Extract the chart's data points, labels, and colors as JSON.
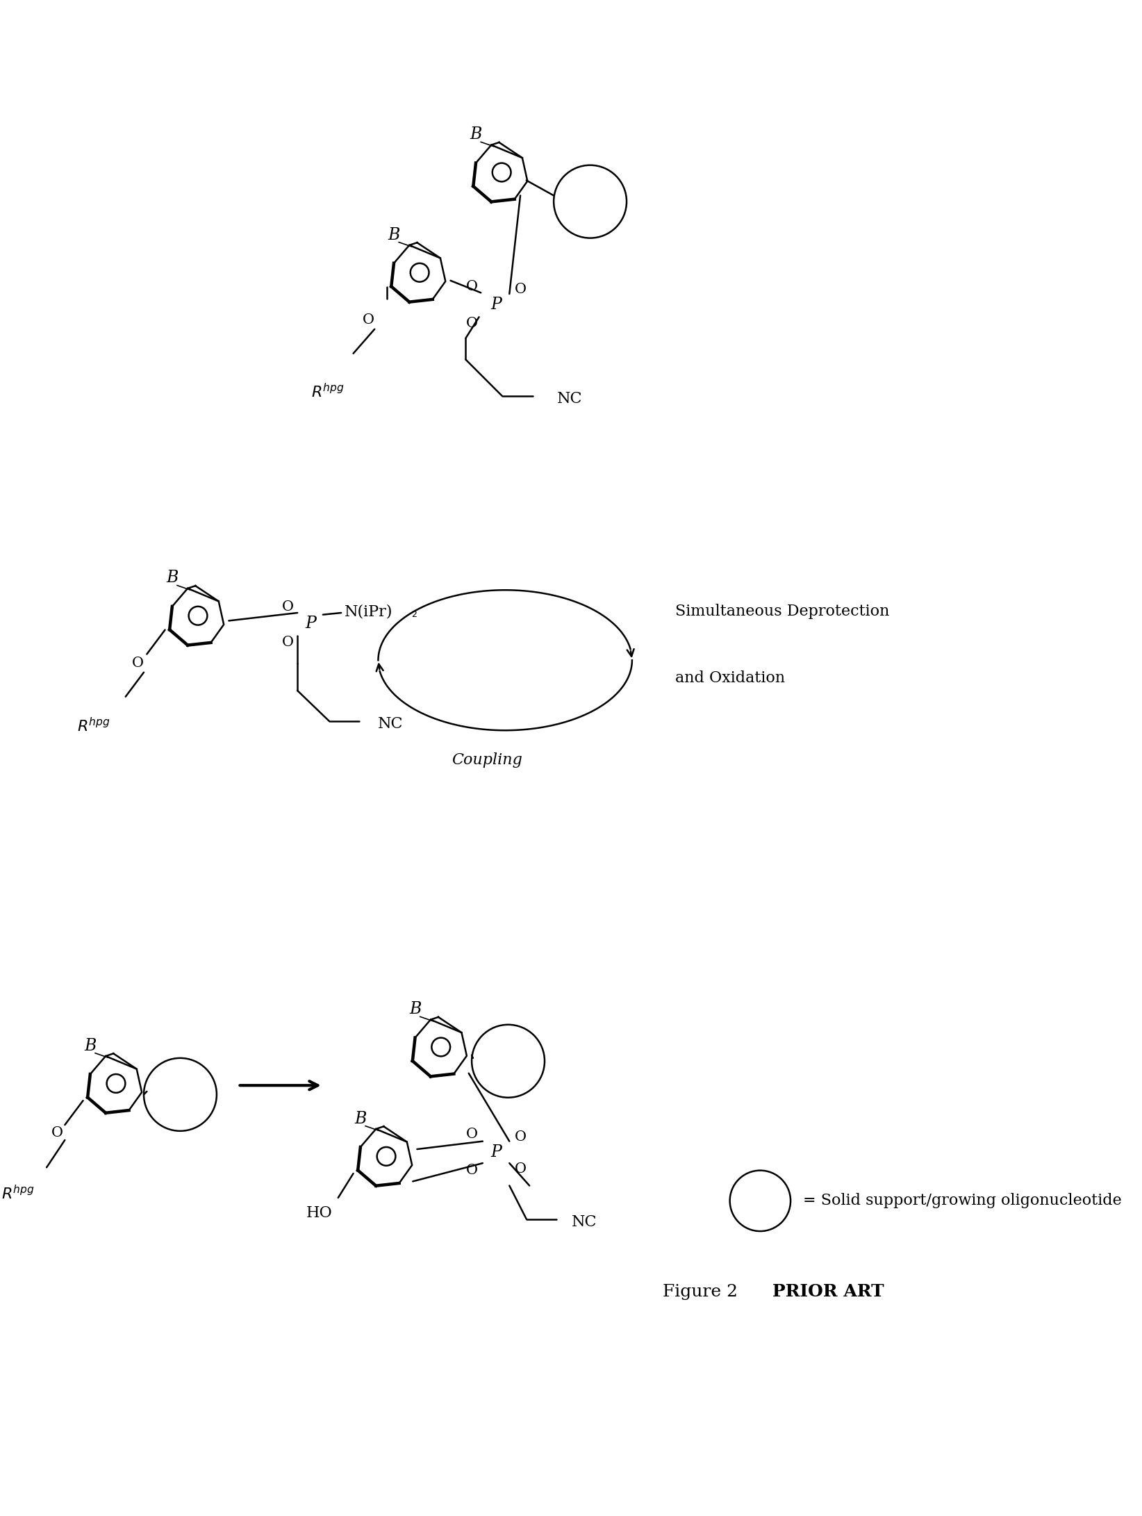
{
  "background_color": "#ffffff",
  "fig_width": 16.44,
  "fig_height": 21.82,
  "line_color": "#000000",
  "figure_label": "Figure 2",
  "prior_art_label": "PRIOR ART",
  "legend_text": "= Solid support/growing oligonucleotide",
  "coupling_label": "Coupling",
  "sim_deprot_line1": "Simultaneous Deprotection",
  "sim_deprot_line2": "and Oxidation"
}
